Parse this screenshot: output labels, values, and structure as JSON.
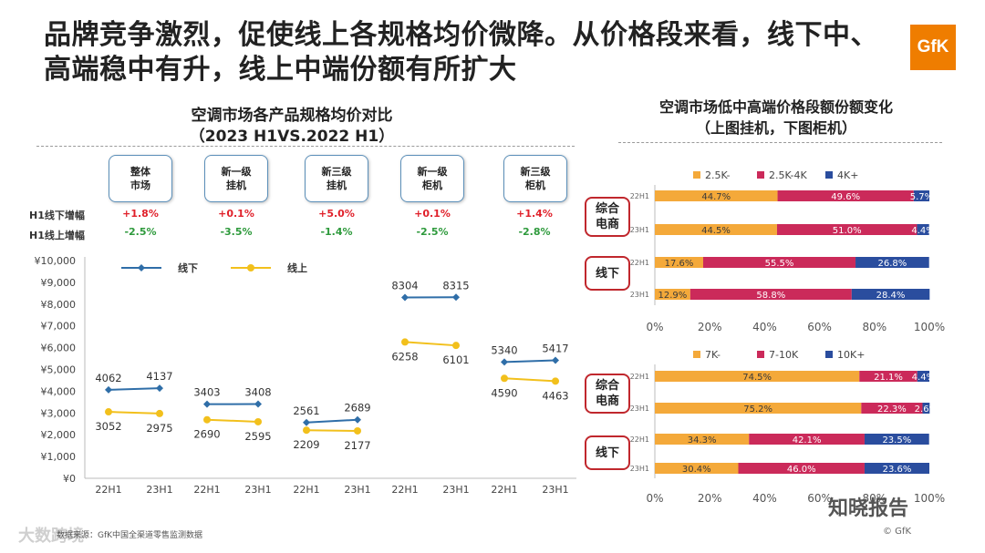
{
  "headline": "品牌竞争激烈，促使线上各规格均价微降。从价格段来看，线下中、高端稳中有升，线上中端份额有所扩大",
  "logo_text": "GfK",
  "left_chart_title_line1": "空调市场各产品规格均价对比",
  "left_chart_title_line2": "（2023 H1VS.2022 H1）",
  "right_chart_title_line1": "空调市场低中高端价格段额份额变化",
  "right_chart_title_line2": "（上图挂机，下图柜机）",
  "segments": [
    {
      "line1": "整体",
      "line2": "市场",
      "offline_growth": "+1.8%",
      "online_growth": "-2.5%"
    },
    {
      "line1": "新一级",
      "line2": "挂机",
      "offline_growth": "+0.1%",
      "online_growth": "-3.5%"
    },
    {
      "line1": "新三级",
      "line2": "挂机",
      "offline_growth": "+5.0%",
      "online_growth": "-1.4%"
    },
    {
      "line1": "新一级",
      "line2": "柜机",
      "offline_growth": "+0.1%",
      "online_growth": "-2.5%"
    },
    {
      "line1": "新三级",
      "line2": "柜机",
      "offline_growth": "+1.4%",
      "online_growth": "-2.8%"
    }
  ],
  "row_labels": {
    "offline": "H1线下增幅",
    "online": "H1线上增幅"
  },
  "tags": {
    "ecommerce_line1": "综合",
    "ecommerce_line2": "电商",
    "offline": "线下"
  },
  "source": "数据来源：GfK中国全渠道零售监测数据",
  "watermark": "大数跨境",
  "wechat_label": "知晓报告",
  "copyright": "© GfK",
  "colors": {
    "offline": "#2f6ea8",
    "online": "#f2c01c",
    "low": "#f4a93a",
    "mid": "#cb2a5a",
    "high": "#2a4d9e",
    "tag_border": "#c0272d"
  },
  "chart_data": [
    {
      "type": "line",
      "title": "空调市场各产品规格均价对比",
      "subtitle": "（2023 H1VS.2022 H1）",
      "y_ticks": [
        "¥0",
        "¥1,000",
        "¥2,000",
        "¥3,000",
        "¥4,000",
        "¥5,000",
        "¥6,000",
        "¥7,000",
        "¥8,000",
        "¥9,000",
        "¥10,000"
      ],
      "ylim": [
        0,
        10000
      ],
      "groups": [
        {
          "x": [
            "22H1",
            "23H1"
          ],
          "series": [
            {
              "name": "线下",
              "values": [
                4062,
                4137
              ]
            },
            {
              "name": "线上",
              "values": [
                3052,
                2975
              ]
            }
          ]
        },
        {
          "x": [
            "22H1",
            "23H1"
          ],
          "series": [
            {
              "name": "线下",
              "values": [
                3403,
                3408
              ]
            },
            {
              "name": "线上",
              "values": [
                2690,
                2595
              ]
            }
          ]
        },
        {
          "x": [
            "22H1",
            "23H1"
          ],
          "series": [
            {
              "name": "线下",
              "values": [
                2561,
                2689
              ]
            },
            {
              "name": "线上",
              "values": [
                2209,
                2177
              ]
            }
          ]
        },
        {
          "x": [
            "22H1",
            "23H1"
          ],
          "series": [
            {
              "name": "线下",
              "values": [
                8304,
                8315
              ]
            },
            {
              "name": "线上",
              "values": [
                6258,
                6101
              ]
            }
          ]
        },
        {
          "x": [
            "22H1",
            "23H1"
          ],
          "series": [
            {
              "name": "线下",
              "values": [
                5340,
                5417
              ]
            },
            {
              "name": "线上",
              "values": [
                4590,
                4463
              ]
            }
          ]
        }
      ],
      "legend": [
        "线下",
        "线上"
      ],
      "legend_placement": "top-left",
      "grid": false
    },
    {
      "type": "bar",
      "orientation": "horizontal",
      "stacked": "percent",
      "legend": [
        "2.5K-",
        "2.5K-4K",
        "4K+"
      ],
      "legend_placement": "top",
      "x_ticks": [
        "0%",
        "20%",
        "40%",
        "60%",
        "80%",
        "100%"
      ],
      "rows": [
        {
          "group": "综合电商",
          "label": "22H1",
          "values": [
            44.7,
            49.6,
            5.7
          ]
        },
        {
          "group": "综合电商",
          "label": "23H1",
          "values": [
            44.5,
            51.0,
            4.4
          ]
        },
        {
          "group": "线下",
          "label": "22H1",
          "values": [
            17.6,
            55.5,
            26.8
          ]
        },
        {
          "group": "线下",
          "label": "23H1",
          "values": [
            12.9,
            58.8,
            28.4
          ]
        }
      ]
    },
    {
      "type": "bar",
      "orientation": "horizontal",
      "stacked": "percent",
      "legend": [
        "7K-",
        "7-10K",
        "10K+"
      ],
      "legend_placement": "top",
      "x_ticks": [
        "0%",
        "20%",
        "40%",
        "60%",
        "80%",
        "100%"
      ],
      "rows": [
        {
          "group": "综合电商",
          "label": "22H1",
          "values": [
            74.5,
            21.1,
            4.4
          ]
        },
        {
          "group": "综合电商",
          "label": "23H1",
          "values": [
            75.2,
            22.3,
            2.6
          ]
        },
        {
          "group": "线下",
          "label": "22H1",
          "values": [
            34.3,
            42.1,
            23.5
          ]
        },
        {
          "group": "线下",
          "label": "23H1",
          "values": [
            30.4,
            46.0,
            23.6
          ]
        }
      ]
    }
  ]
}
